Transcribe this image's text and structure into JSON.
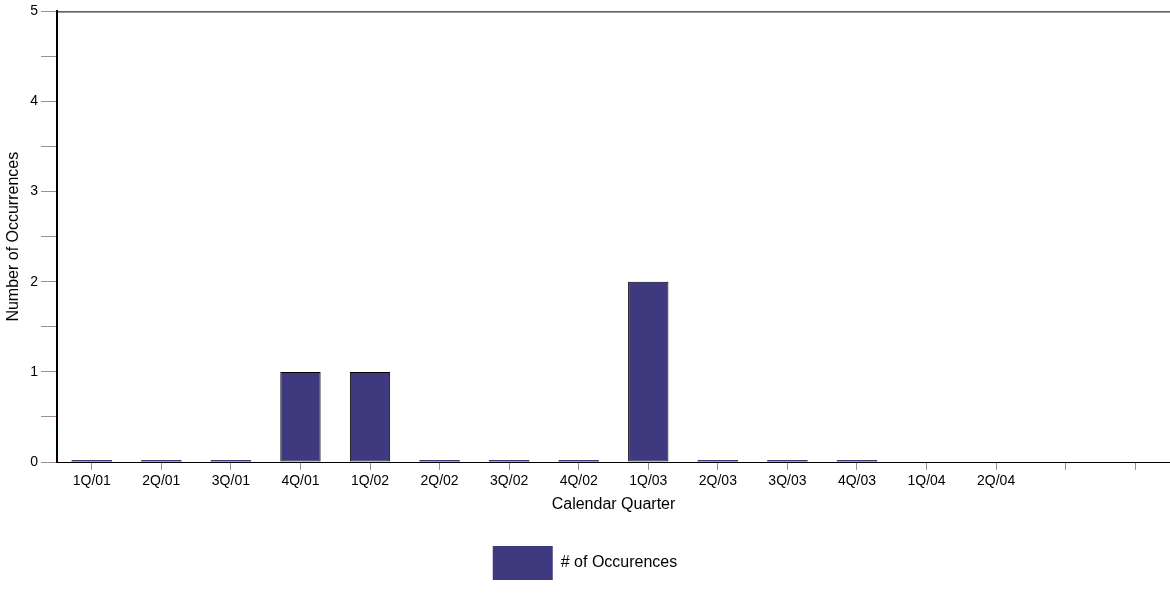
{
  "chart_data": {
    "type": "bar",
    "xlabel": "Calendar Quarter",
    "ylabel": "Number of Occurrences",
    "categories": [
      "1Q/01",
      "2Q/01",
      "3Q/01",
      "4Q/01",
      "1Q/02",
      "2Q/02",
      "3Q/02",
      "4Q/02",
      "1Q/03",
      "2Q/03",
      "3Q/03",
      "4Q/03",
      "1Q/04",
      "2Q/04",
      null,
      null
    ],
    "series": [
      {
        "name": "# of Occurences",
        "color": "#3f3a80",
        "values": [
          0,
          0,
          0,
          1,
          1,
          0,
          0,
          0,
          2,
          0,
          0,
          0,
          null,
          null,
          null,
          null
        ]
      }
    ],
    "ylim": [
      0,
      5
    ],
    "yticks": [
      0,
      {
        "value": 0.5,
        "label": null
      },
      1,
      {
        "value": 1.5,
        "label": null
      },
      2,
      {
        "value": 2.5,
        "label": null
      },
      3,
      {
        "value": 3.5,
        "label": null
      },
      4,
      {
        "value": 4.5,
        "label": null
      },
      5
    ],
    "grid": false,
    "legend": "bottom"
  }
}
